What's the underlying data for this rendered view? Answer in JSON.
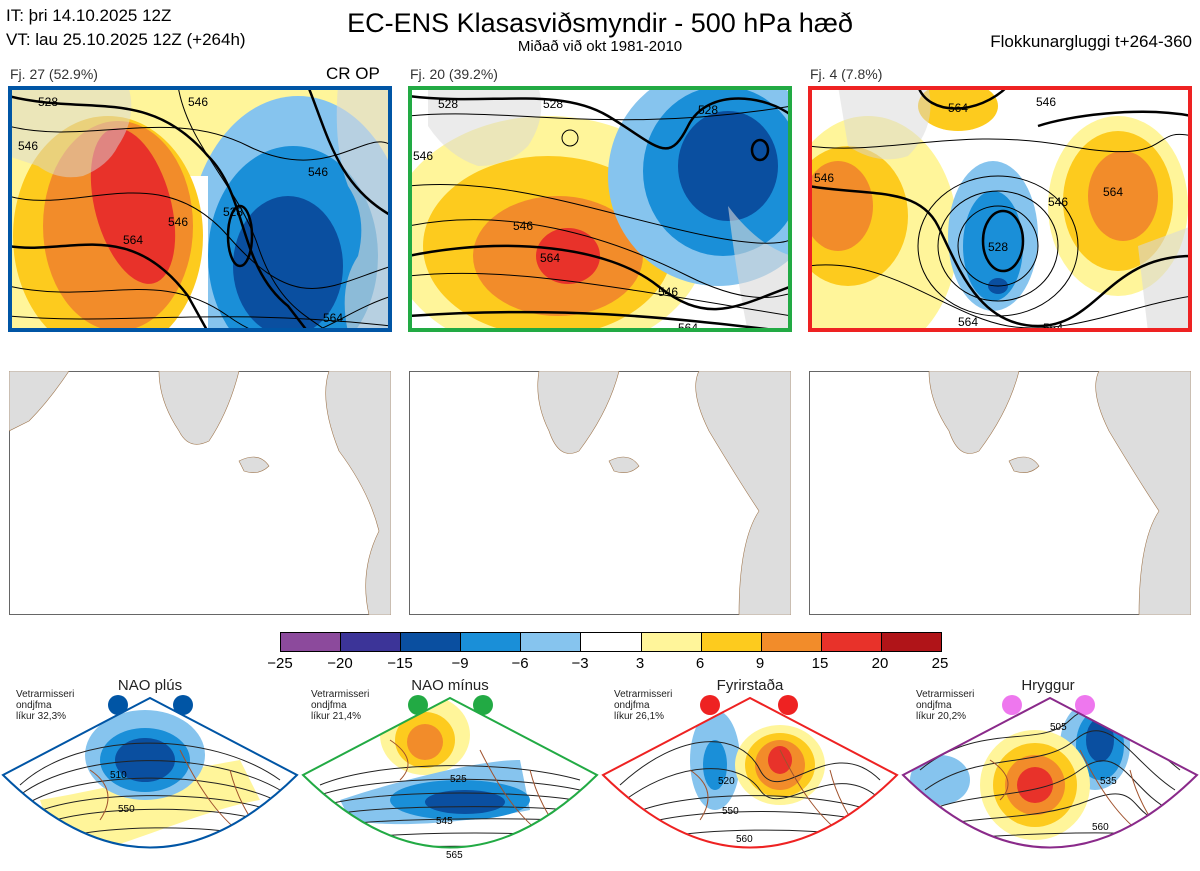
{
  "header": {
    "it_line": "IT: þri 14.10.2025 12Z",
    "vt_line": "VT: lau 25.10.2025 12Z  (+264h)",
    "title": "EC-ENS Klasasviðsmyndir - 500 hPa hæð",
    "subtitle": "Miðað við okt 1981-2010",
    "window": "Flokkunargluggi t+264-360"
  },
  "clusters": [
    {
      "label": "Fj. 27 (52.9%)",
      "tag": "CR OP",
      "border_color": "#0055a5",
      "contours": [
        "528",
        "546",
        "546",
        "564",
        "528",
        "546",
        "546",
        "564"
      ]
    },
    {
      "label": "Fj. 20 (39.2%)",
      "tag": "",
      "border_color": "#22aa44",
      "contours": [
        "528",
        "528",
        "546",
        "528",
        "546",
        "564",
        "546",
        "564"
      ]
    },
    {
      "label": "Fj. 4 (7.8%)",
      "tag": "",
      "border_color": "#ee2222",
      "contours": [
        "564",
        "546",
        "546",
        "546",
        "528",
        "564",
        "564",
        "564"
      ]
    }
  ],
  "colorbar": {
    "colors": [
      "#8c4a9c",
      "#3c3498",
      "#0a4fa0",
      "#1a8fd8",
      "#86c4ee",
      "#ffffff",
      "#fff59a",
      "#fdcb1e",
      "#f28c2a",
      "#e8322a",
      "#b01418"
    ],
    "ticks": [
      "−25",
      "−20",
      "−15",
      "−9",
      "−6",
      "−3",
      "3",
      "6",
      "9",
      "15",
      "20",
      "25"
    ]
  },
  "regimes": [
    {
      "name": "NAO plús",
      "stat_1": "Vetrarmisseri",
      "stat_2": "ondjfma",
      "stat_3": "líkur 32,3%",
      "color": "#0055a5",
      "dot_color": "#0055a5",
      "contours": [
        "510",
        "550"
      ]
    },
    {
      "name": "NAO mínus",
      "stat_1": "Vetrarmisseri",
      "stat_2": "ondjfma",
      "stat_3": "líkur 21,4%",
      "color": "#22aa44",
      "dot_color": "#22aa44",
      "contours": [
        "525",
        "545",
        "565"
      ]
    },
    {
      "name": "Fyrirstaða",
      "stat_1": "Vetrarmisseri",
      "stat_2": "ondjfma",
      "stat_3": "líkur 26,1%",
      "color": "#ee2222",
      "dot_color": "#ee2222",
      "contours": [
        "520",
        "550",
        "560"
      ]
    },
    {
      "name": "Hryggur",
      "stat_1": "Vetrarmisseri",
      "stat_2": "ondjfma",
      "stat_3": "líkur 20,2%",
      "color": "#8a2a8a",
      "dot_color": "#ee77ee",
      "contours": [
        "505",
        "535",
        "560"
      ]
    }
  ]
}
